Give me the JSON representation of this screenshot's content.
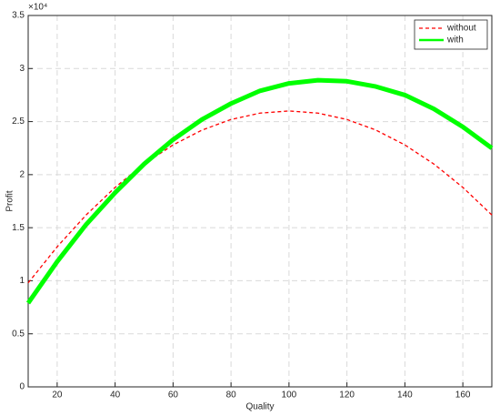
{
  "chart_data": {
    "type": "line",
    "xlabel": "Quality",
    "ylabel": "Profit",
    "y_exponent_label": "×10⁴",
    "x": [
      10,
      20,
      30,
      40,
      50,
      60,
      70,
      80,
      90,
      100,
      110,
      120,
      130,
      140,
      150,
      160,
      170
    ],
    "series": [
      {
        "name": "without",
        "color": "#ff0000",
        "style": "dashed",
        "values": [
          0.98,
          1.32,
          1.62,
          1.88,
          2.1,
          2.28,
          2.42,
          2.52,
          2.58,
          2.6,
          2.58,
          2.52,
          2.42,
          2.28,
          2.1,
          1.88,
          1.62
        ]
      },
      {
        "name": "with",
        "color": "#00ff00",
        "style": "solid",
        "values": [
          0.79,
          1.18,
          1.53,
          1.83,
          2.1,
          2.33,
          2.52,
          2.67,
          2.79,
          2.86,
          2.89,
          2.88,
          2.83,
          2.75,
          2.62,
          2.45,
          2.25
        ]
      }
    ],
    "xlim": [
      10,
      170
    ],
    "xticks": [
      20,
      40,
      60,
      80,
      100,
      120,
      140,
      160
    ],
    "ylim": [
      0,
      3.5
    ],
    "yticks": [
      0,
      0.5,
      1,
      1.5,
      2,
      2.5,
      3,
      3.5
    ],
    "grid": true,
    "legend": "northeast"
  }
}
